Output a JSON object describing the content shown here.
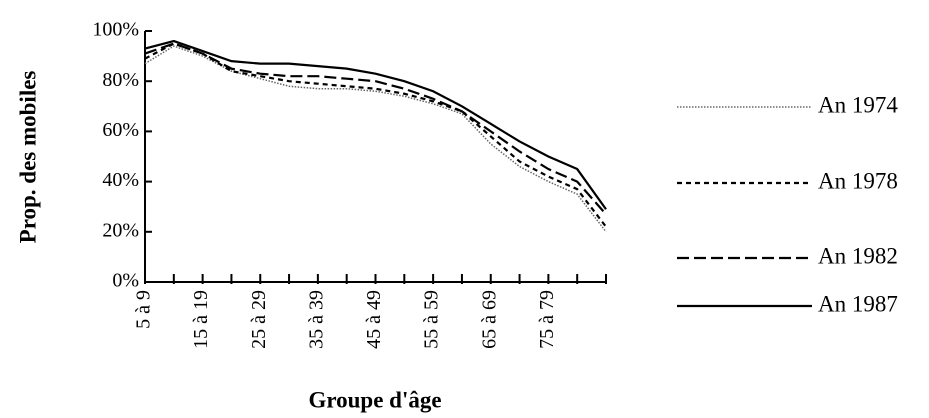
{
  "chart_data": {
    "type": "line",
    "ylabel": "Prop. des mobiles",
    "xlabel": "Groupe d'âge",
    "categories": [
      "5 à 9",
      null,
      "15 à 19",
      null,
      "25 à 29",
      null,
      "35 à 39",
      null,
      "45 à 49",
      null,
      "55 à 59",
      null,
      "65 à 69",
      null,
      "75 à 79",
      null,
      null
    ],
    "ylim": [
      0,
      100
    ],
    "yticks": [
      {
        "value": 0,
        "label": "0%"
      },
      {
        "value": 20,
        "label": "20%"
      },
      {
        "value": 40,
        "label": "40%"
      },
      {
        "value": 60,
        "label": "60%"
      },
      {
        "value": 80,
        "label": "80%"
      },
      {
        "value": 100,
        "label": "100%"
      }
    ],
    "grid": false,
    "legend": "right",
    "series": [
      {
        "name": "An 1974",
        "color": "#666666",
        "dash": "dotted",
        "values": [
          87,
          94,
          90,
          84,
          81,
          78,
          77,
          77,
          76,
          74,
          71,
          67,
          55,
          46,
          40,
          35,
          20
        ]
      },
      {
        "name": "An 1978",
        "color": "#000000",
        "dash": "short-dash",
        "values": [
          89,
          95,
          91,
          84,
          82,
          80,
          79,
          78,
          77,
          75,
          72,
          68,
          58,
          48,
          42,
          37,
          22
        ]
      },
      {
        "name": "An 1982",
        "color": "#000000",
        "dash": "long-dash",
        "values": [
          91,
          95,
          91,
          85,
          83,
          82,
          82,
          81,
          80,
          77,
          73,
          68,
          60,
          52,
          45,
          40,
          27
        ]
      },
      {
        "name": "An 1987",
        "color": "#000000",
        "dash": "solid",
        "values": [
          93,
          96,
          92,
          88,
          87,
          87,
          86,
          85,
          83,
          80,
          76,
          70,
          63,
          56,
          50,
          45,
          29
        ]
      }
    ]
  }
}
